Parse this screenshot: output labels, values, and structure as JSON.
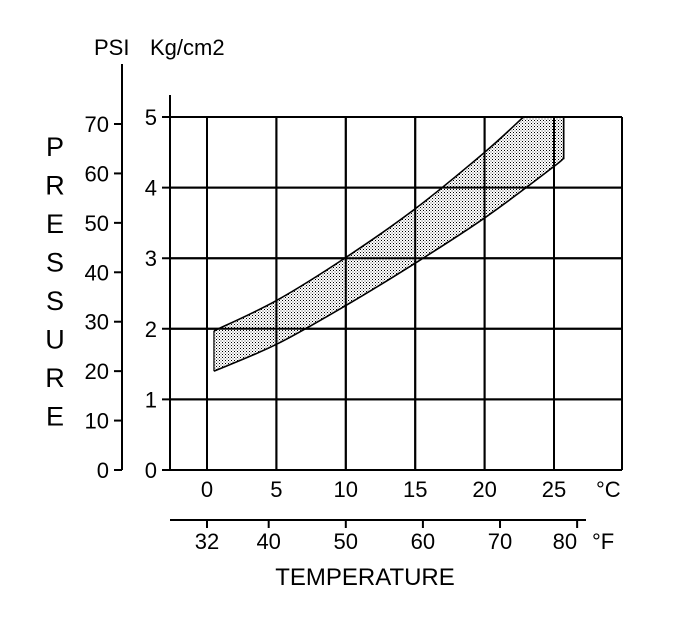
{
  "chart_data": {
    "type": "area",
    "left_axis_unit_label": "PSI",
    "right_axis_unit_label": "Kg/cm2",
    "ylabel": "PRESSURE",
    "xlabel": "TEMPERATURE",
    "celsius_unit": "°C",
    "fahrenheit_unit": "°F",
    "psi_ticks": [
      "70",
      "60",
      "50",
      "40",
      "30",
      "20",
      "10",
      "0"
    ],
    "kg_ticks": [
      "5",
      "4",
      "3",
      "2",
      "1",
      "0"
    ],
    "celsius_ticks": [
      "0",
      "5",
      "10",
      "15",
      "20",
      "25"
    ],
    "fahrenheit_ticks": [
      "32",
      "40",
      "50",
      "60",
      "70",
      "80"
    ],
    "xlim_celsius": [
      -1.3,
      30.2
    ],
    "ylim_kg": [
      0,
      5
    ],
    "grid": true,
    "series": [
      {
        "role": "upper",
        "x": [
          0.5,
          5,
          10,
          15,
          20,
          22.8
        ],
        "y": [
          1.97,
          2.4,
          3.01,
          3.7,
          4.5,
          5.0
        ]
      },
      {
        "role": "lower",
        "x": [
          0.5,
          5,
          10,
          15,
          20,
          25,
          25.7
        ],
        "y": [
          1.4,
          1.78,
          2.33,
          2.93,
          3.57,
          4.3,
          4.43
        ]
      }
    ],
    "band_right_edge_x": 25.7
  }
}
